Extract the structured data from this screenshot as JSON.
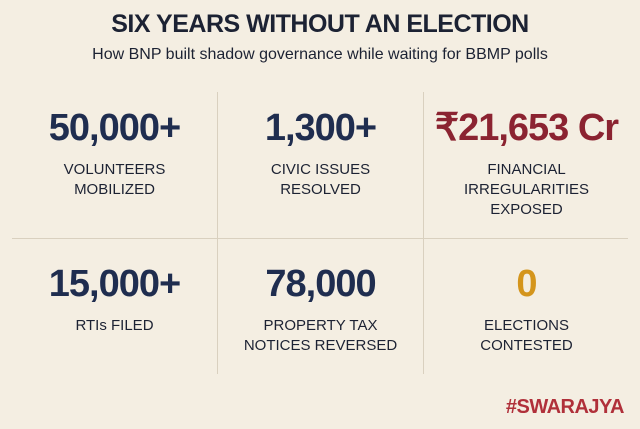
{
  "header": {
    "title": "SIX YEARS WITHOUT AN ELECTION",
    "subtitle": "How BNP built shadow governance while waiting for BBMP polls"
  },
  "stats": [
    {
      "value": "50,000+",
      "label_lines": [
        "VOLUNTEERS",
        "MOBILIZED"
      ],
      "color": "#1f2d4f"
    },
    {
      "value": "1,300+",
      "label_lines": [
        "CIVIC ISSUES",
        "RESOLVED"
      ],
      "color": "#1f2d4f"
    },
    {
      "value": "₹21,653 Cr",
      "label_lines": [
        "FINANCIAL",
        "IRREGULARITIES",
        "EXPOSED"
      ],
      "color": "#8b2331"
    },
    {
      "value": "15,000+",
      "label_lines": [
        "RTIs FILED"
      ],
      "color": "#1f2d4f"
    },
    {
      "value": "78,000",
      "label_lines": [
        "PROPERTY TAX",
        "NOTICES REVERSED"
      ],
      "color": "#1f2d4f"
    },
    {
      "value": "0",
      "label_lines": [
        "ELECTIONS",
        "CONTESTED"
      ],
      "color": "#d4951c"
    }
  ],
  "footer": {
    "brand": "#SWARAJYA"
  }
}
